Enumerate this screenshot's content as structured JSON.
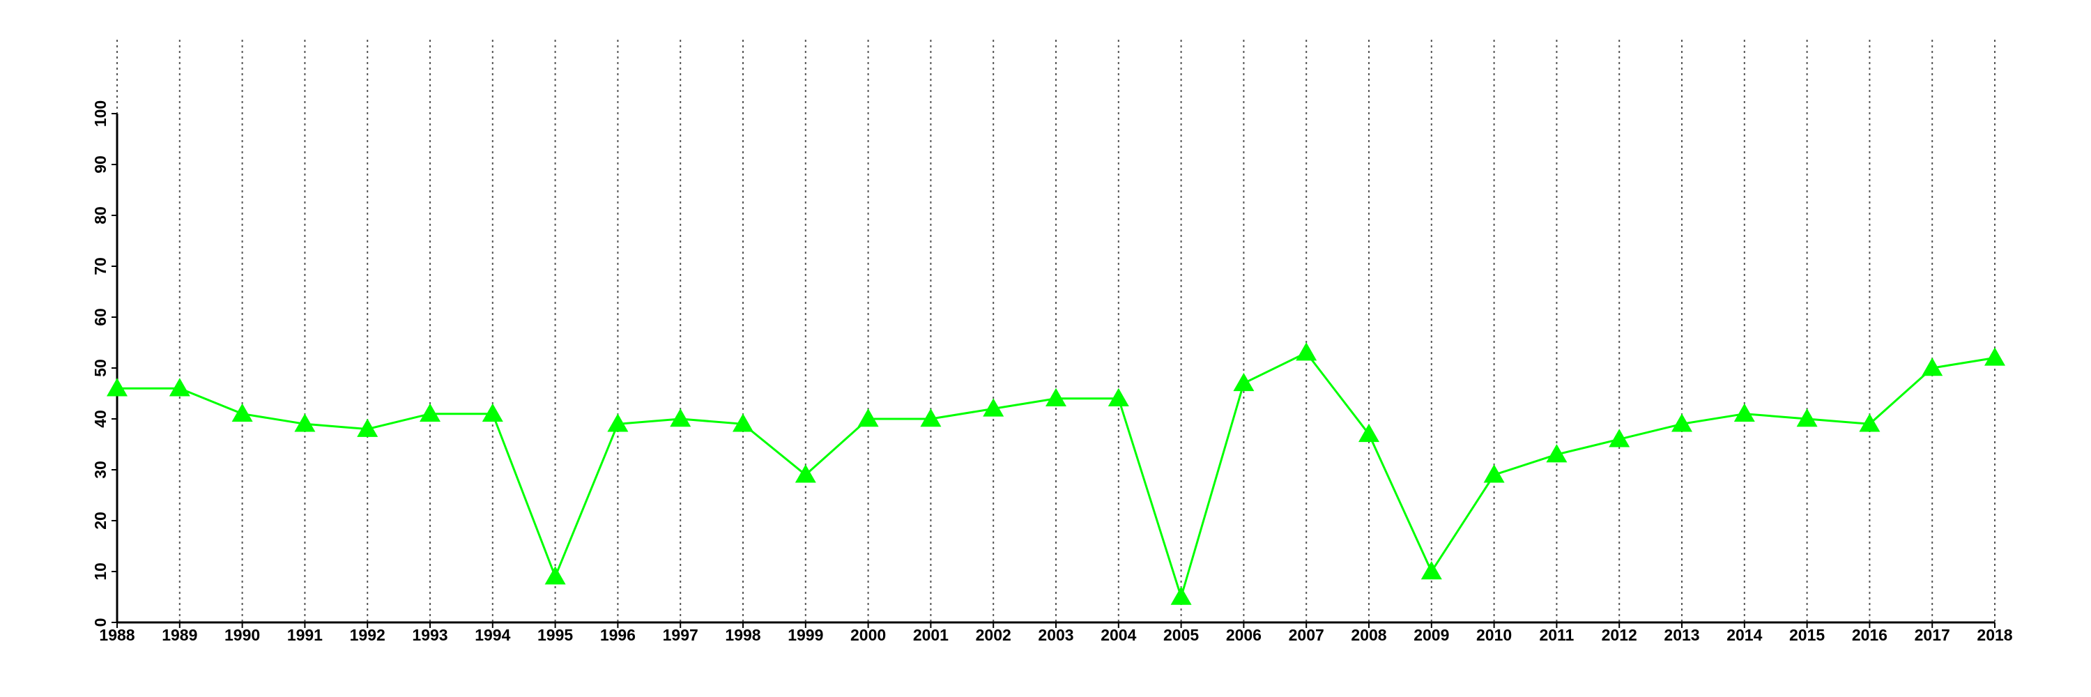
{
  "chart_data": {
    "type": "line",
    "x": [
      1988,
      1989,
      1990,
      1991,
      1992,
      1993,
      1994,
      1995,
      1996,
      1997,
      1998,
      1999,
      2000,
      2001,
      2002,
      2003,
      2004,
      2005,
      2006,
      2007,
      2008,
      2009,
      2010,
      2011,
      2012,
      2013,
      2014,
      2015,
      2016,
      2017,
      2018
    ],
    "series": [
      {
        "color": "#00ff00",
        "marker": "triangle",
        "values": [
          46,
          46,
          41,
          39,
          38,
          41,
          41,
          9,
          39,
          40,
          39,
          29,
          40,
          40,
          42,
          44,
          44,
          5,
          47,
          53,
          37,
          10,
          29,
          33,
          36,
          39,
          41,
          40,
          39,
          50,
          52
        ]
      }
    ],
    "xlim": [
      1988,
      2018
    ],
    "xticks": [
      1988,
      1989,
      1990,
      1991,
      1992,
      1993,
      1994,
      1995,
      1996,
      1997,
      1998,
      1999,
      2000,
      2001,
      2002,
      2003,
      2004,
      2005,
      2006,
      2007,
      2008,
      2009,
      2010,
      2011,
      2012,
      2013,
      2014,
      2015,
      2016,
      2017,
      2018
    ],
    "ylim": [
      0,
      100
    ],
    "yticks": [
      0,
      10,
      20,
      30,
      40,
      50,
      60,
      70,
      80,
      90,
      100
    ],
    "grid": "x"
  }
}
